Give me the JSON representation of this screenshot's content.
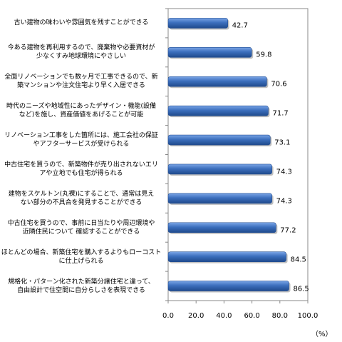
{
  "chart_data": {
    "type": "bar",
    "orientation": "horizontal",
    "categories": [
      "古い建物の味わいや雰囲気を残すことができる",
      "今ある建物を再利用するので、廃棄物や必要資材が\n少なくすみ地球環境にやさしい",
      "全面リノベーションでも数ヶ月で工事できるので、新\n築マンションや注文住宅より早く入居できる",
      "時代のニーズや地域性にあったデザイン・機能(設備\nなど)を施し、資産価値をあげることが可能",
      "リノベーション工事をした箇所には、施工会社の保証\nやアフターサービスが受けられる",
      "中古住宅を買うので、新築物件が売り出されないエリ\nアや立地でも住宅が得られる",
      "建物をスケルトン(丸裸)にすることで、通常は見え\nない部分の不具合を発見することができる",
      "中古住宅を買うので、事前に日当たりや周辺環境や\n近隣住民について 確認することができる",
      "ほとんどの場合、新築住宅を購入するよりもローコスト\nに仕上げられる",
      "規格化・パターン化された新築分譲住宅と違って、\n自由設計で住空間に自分らしさを表現できる"
    ],
    "values": [
      42.7,
      59.8,
      70.6,
      71.7,
      73.1,
      74.3,
      74.3,
      77.2,
      84.5,
      86.5
    ],
    "value_labels": [
      "42.7",
      "59.8",
      "70.6",
      "71.7",
      "73.1",
      "74.3",
      "74.3",
      "77.2",
      "84.5",
      "86.5"
    ],
    "xlim": [
      0,
      100
    ],
    "xticks": [
      "0.0",
      "20.0",
      "40.0",
      "60.0",
      "80.0",
      "100.0"
    ],
    "xlabel": "（%）",
    "grid": false,
    "bar_color": "#3c6fbd"
  }
}
